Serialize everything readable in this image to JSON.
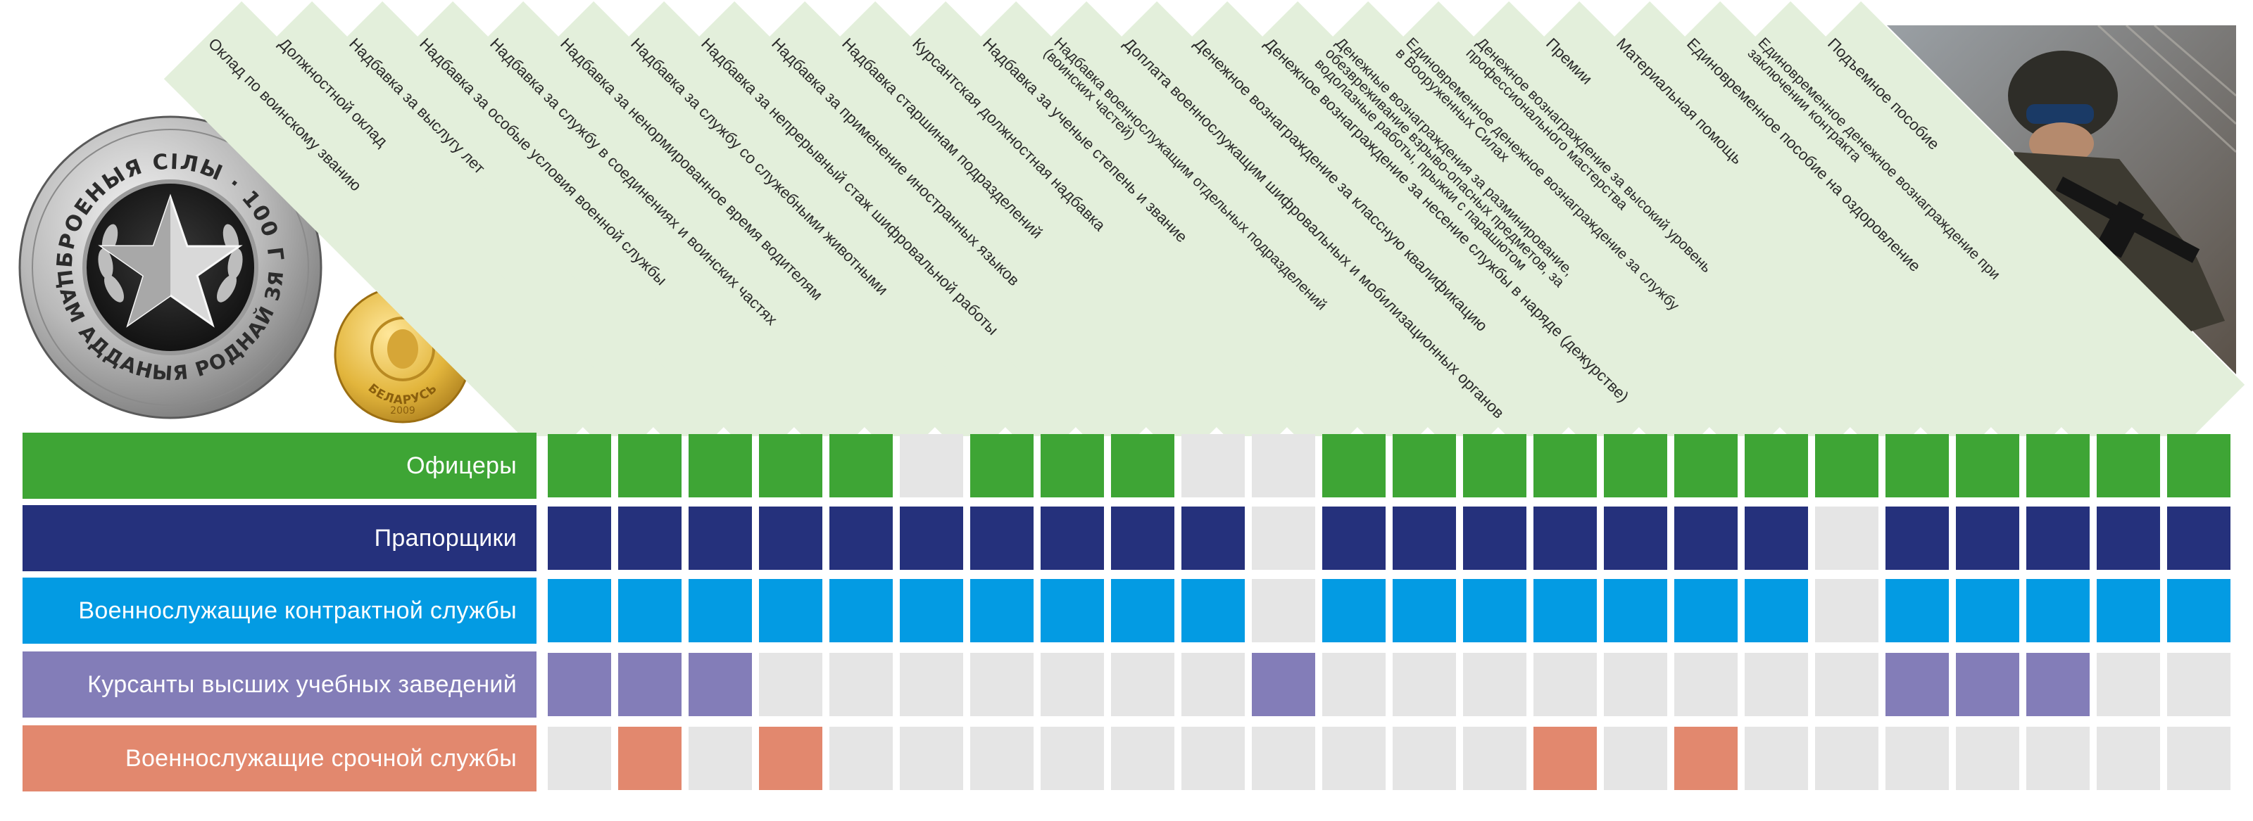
{
  "columns": [
    {
      "label": "Оклад по воинскому званию"
    },
    {
      "label": "Должностной оклад"
    },
    {
      "label": "Надбавка за выслугу лет"
    },
    {
      "label": "Надбавка за особые условия военной службы"
    },
    {
      "label": "Надбавка за службу в соединениях и воинских частях"
    },
    {
      "label": "Надбавка за ненормированное время водителям"
    },
    {
      "label": "Надбавка за службу со служебными животными"
    },
    {
      "label": "Надбавка за непрерывный стаж шифровальной работы"
    },
    {
      "label": "Надбавка за применение иностранных языков"
    },
    {
      "label": "Надбавка старшинам подразделений"
    },
    {
      "label": "Курсантская должностная надбавка"
    },
    {
      "label": "Надбавка за ученые степень и звание"
    },
    {
      "label": "Надбавка военнослужащим отдельных подразделений (воинских частей)"
    },
    {
      "label": "Доплата военнослужащим шифровальных и мобилизационных органов"
    },
    {
      "label": "Денежное вознаграждение за классную квалификацию"
    },
    {
      "label": "Денежное вознаграждение за несение службы в наряде (дежурстве)"
    },
    {
      "label": "Денежные вознаграждения за разминирование, обезвреживание взрыво-опасных предметов, за водолазные работы, прыжки с парашютом"
    },
    {
      "label": "Единовременное денежное вознаграждение за службу в Вооруженных Силах"
    },
    {
      "label": "Денежное вознаграждение за высокий уровень профессионального мастерства"
    },
    {
      "label": "Премии"
    },
    {
      "label": "Материальная помощь"
    },
    {
      "label": "Единовременное пособие на оздоровление"
    },
    {
      "label": "Единовременное денежное вознаграждение при заключении контракта"
    },
    {
      "label": "Подъемное пособие"
    }
  ],
  "rows": [
    {
      "label": "Офицеры",
      "color": "#3ea535",
      "cells": [
        1,
        1,
        1,
        1,
        1,
        0,
        1,
        1,
        1,
        0,
        0,
        1,
        1,
        1,
        1,
        1,
        1,
        1,
        1,
        1,
        1,
        1,
        1,
        1
      ]
    },
    {
      "label": "Прапорщики",
      "color": "#25317c",
      "cells": [
        1,
        1,
        1,
        1,
        1,
        1,
        1,
        1,
        1,
        1,
        0,
        1,
        1,
        1,
        1,
        1,
        1,
        1,
        0,
        1,
        1,
        1,
        1,
        1
      ]
    },
    {
      "label": "Военнослужащие контрактной службы",
      "color": "#039be3",
      "cells": [
        1,
        1,
        1,
        1,
        1,
        1,
        1,
        1,
        1,
        1,
        0,
        1,
        1,
        1,
        1,
        1,
        1,
        1,
        0,
        1,
        1,
        1,
        1,
        1
      ]
    },
    {
      "label": "Курсанты высших учебных заведений",
      "color": "#837db8",
      "cells": [
        1,
        1,
        1,
        0,
        0,
        0,
        0,
        0,
        0,
        0,
        1,
        0,
        0,
        0,
        0,
        0,
        0,
        0,
        0,
        1,
        1,
        1,
        0,
        0
      ]
    },
    {
      "label": "Военнослужащие срочной службы",
      "color": "#e2886e",
      "cells": [
        0,
        1,
        0,
        1,
        0,
        0,
        0,
        0,
        0,
        0,
        0,
        0,
        0,
        0,
        1,
        0,
        1,
        0,
        0,
        0,
        0,
        0,
        0,
        0
      ]
    }
  ],
  "empty_color": "#e5e5e5",
  "banner_color": "#e3efdb",
  "medal": {
    "top_text": "УЗБРОЕНЫЯ СІЛЫ · 100 ГОД",
    "bottom_text": "СЭРЦАМ АДДАНЫЯ РОДНАЙ ЗЯМЛІ"
  },
  "coin": {
    "text": "БЕЛАРУСЬ",
    "year": "2009"
  }
}
